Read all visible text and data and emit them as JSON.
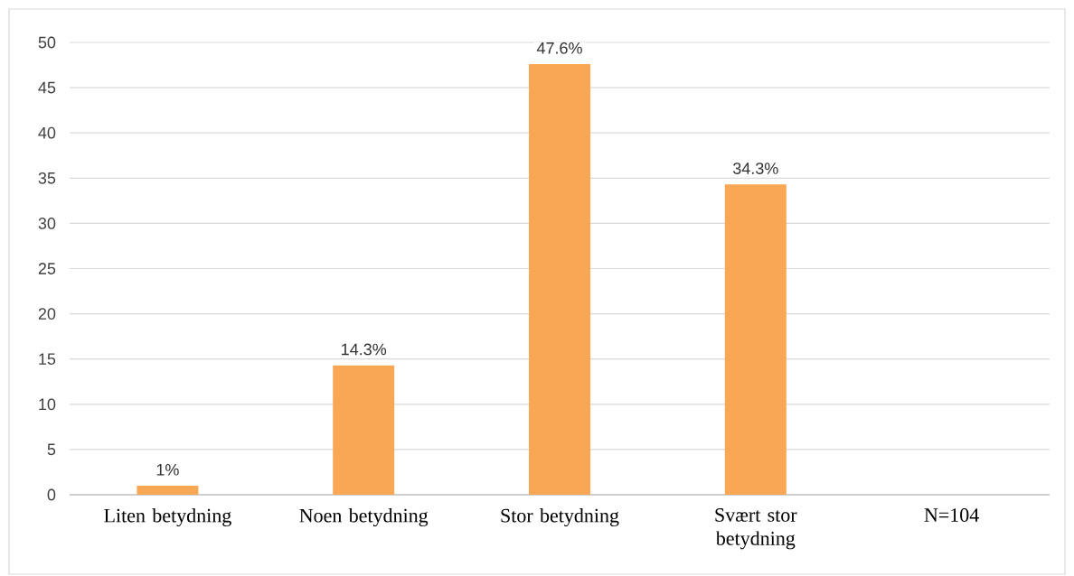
{
  "chart_data": {
    "type": "bar",
    "categories": [
      "Liten betydning",
      "Noen betydning",
      "Stor betydning",
      "Svært stor betydning",
      "N=104"
    ],
    "values": [
      1,
      14.3,
      47.6,
      34.3,
      null
    ],
    "value_labels": [
      "1%",
      "14.3%",
      "47.6%",
      "34.3%",
      null
    ],
    "color": "#f9a655",
    "ylim": [
      0,
      50
    ],
    "yticks": [
      0,
      5,
      10,
      15,
      20,
      25,
      30,
      35,
      40,
      45,
      50
    ],
    "grid": "y"
  }
}
